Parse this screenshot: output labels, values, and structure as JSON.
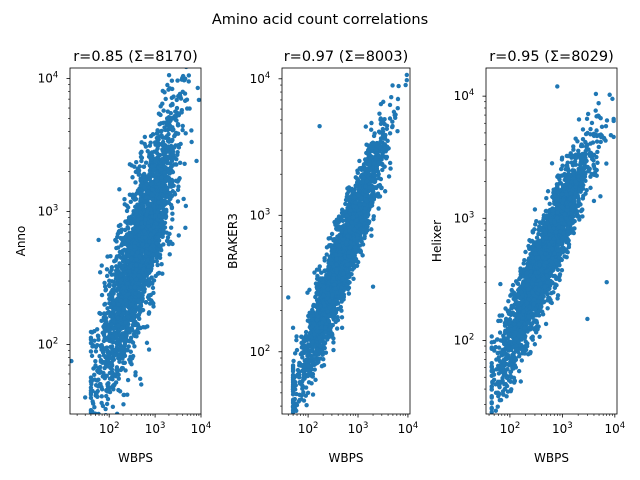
{
  "suptitle": "Amino acid count correlations",
  "colors": {
    "points": "#1f77b4",
    "axes": "#000000",
    "background": "#ffffff"
  },
  "chart_data": [
    {
      "type": "scatter",
      "title": "r=0.85 (Σ=8170)",
      "xlabel": "WBPS",
      "ylabel": "Anno",
      "xscale": "log",
      "yscale": "log",
      "xlim": [
        14,
        10000
      ],
      "ylim": [
        30,
        12000
      ],
      "xticks": [
        {
          "v": 100,
          "b": "10",
          "e": "2"
        },
        {
          "v": 1000,
          "b": "10",
          "e": "3"
        },
        {
          "v": 10000,
          "b": "10",
          "e": "4"
        }
      ],
      "yticks": [
        {
          "v": 100,
          "b": "10",
          "e": "2"
        },
        {
          "v": 1000,
          "b": "10",
          "e": "3"
        },
        {
          "v": 10000,
          "b": "10",
          "e": "4"
        }
      ],
      "correlation": 0.85,
      "n": 8170,
      "extent": {
        "xmin": 40,
        "xmax": 9000
      },
      "extra_points": [
        [
          15,
          75
        ],
        [
          30,
          40
        ],
        [
          40,
          45
        ],
        [
          160,
          200
        ],
        [
          500,
          50
        ],
        [
          8500,
          8500
        ],
        [
          8000,
          2400
        ],
        [
          900,
          3800
        ],
        [
          3000,
          6000
        ]
      ]
    },
    {
      "type": "scatter",
      "title": "r=0.97 (Σ=8003)",
      "xlabel": "WBPS",
      "ylabel": "BRAKER3",
      "xscale": "log",
      "yscale": "log",
      "xlim": [
        30,
        11000
      ],
      "ylim": [
        35,
        12000
      ],
      "xticks": [
        {
          "v": 100,
          "b": "10",
          "e": "2"
        },
        {
          "v": 1000,
          "b": "10",
          "e": "3"
        },
        {
          "v": 10000,
          "b": "10",
          "e": "4"
        }
      ],
      "yticks": [
        {
          "v": 100,
          "b": "10",
          "e": "2"
        },
        {
          "v": 1000,
          "b": "10",
          "e": "3"
        },
        {
          "v": 10000,
          "b": "10",
          "e": "4"
        }
      ],
      "correlation": 0.97,
      "n": 8003,
      "extent": {
        "xmin": 50,
        "xmax": 9500
      },
      "extra_points": [
        [
          170,
          4500
        ],
        [
          75,
          48
        ],
        [
          100,
          50
        ],
        [
          9000,
          9000
        ],
        [
          3500,
          1500
        ],
        [
          2000,
          300
        ],
        [
          40,
          250
        ]
      ]
    },
    {
      "type": "scatter",
      "title": "r=0.95 (Σ=8029)",
      "xlabel": "WBPS",
      "ylabel": "Helixer",
      "xscale": "log",
      "yscale": "log",
      "xlim": [
        35,
        11000
      ],
      "ylim": [
        25,
        17000
      ],
      "xticks": [
        {
          "v": 100,
          "b": "10",
          "e": "2"
        },
        {
          "v": 1000,
          "b": "10",
          "e": "3"
        },
        {
          "v": 10000,
          "b": "10",
          "e": "4"
        }
      ],
      "yticks": [
        {
          "v": 100,
          "b": "10",
          "e": "2"
        },
        {
          "v": 1000,
          "b": "10",
          "e": "3"
        },
        {
          "v": 10000,
          "b": "10",
          "e": "4"
        }
      ],
      "correlation": 0.95,
      "n": 8029,
      "extent": {
        "xmin": 45,
        "xmax": 9500
      },
      "extra_points": [
        [
          800,
          12000
        ],
        [
          45,
          35
        ],
        [
          60,
          35
        ],
        [
          9000,
          9500
        ],
        [
          7000,
          300
        ],
        [
          3000,
          150
        ],
        [
          80,
          40
        ]
      ]
    }
  ]
}
